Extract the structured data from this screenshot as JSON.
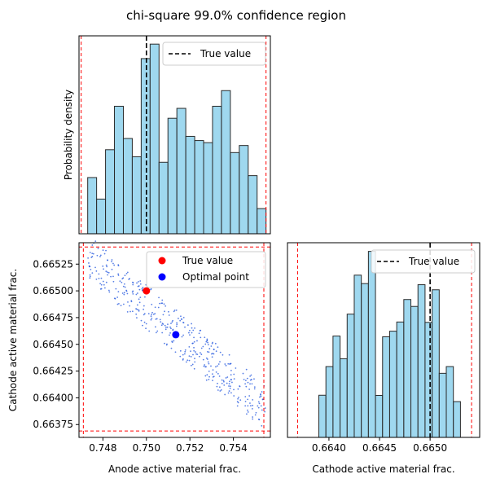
{
  "figure": {
    "title": "chi-square 99.0% confidence region"
  },
  "colors": {
    "hist_fill": "#87ceeb",
    "hist_edge": "#2b2b2b",
    "true_line": "#000000",
    "bound": "#ff0000",
    "cloud": "#2255dd",
    "true_point": "#ff0000",
    "optimal_point": "#0000ff"
  },
  "chart_data": [
    {
      "id": "anode-histogram",
      "type": "bar",
      "title": "",
      "xlabel": "",
      "ylabel": "Probability density",
      "xlim": [
        0.7469,
        0.7557
      ],
      "ylim": [
        0,
        1
      ],
      "show_xticks": false,
      "show_yticks": false,
      "bin_edges": [
        0.7473,
        0.74771,
        0.74812,
        0.74853,
        0.74894,
        0.74935,
        0.74976,
        0.75017,
        0.75058,
        0.75099,
        0.7514,
        0.75181,
        0.75222,
        0.75263,
        0.75304,
        0.75345,
        0.75386,
        0.75427,
        0.75468,
        0.75509,
        0.7555
      ],
      "values": [
        0.295,
        0.182,
        0.441,
        0.669,
        0.5,
        0.404,
        0.919,
        0.995,
        0.375,
        0.606,
        0.658,
        0.511,
        0.489,
        0.478,
        0.669,
        0.751,
        0.426,
        0.463,
        0.305,
        0.132
      ],
      "reference_line": {
        "label": "True value",
        "x": 0.75
      },
      "bounds": [
        0.747,
        0.7555
      ],
      "legend": {
        "position": "upper right",
        "entries": [
          "True value"
        ]
      },
      "grid": false
    },
    {
      "id": "joint-scatter",
      "type": "scatter",
      "title": "",
      "xlabel": "Anode active material frac.",
      "ylabel": "Cathode active material frac.",
      "xlim": [
        0.7469,
        0.7557
      ],
      "ylim": [
        0.66363,
        0.66545
      ],
      "xticks": [
        0.748,
        0.75,
        0.752,
        0.754
      ],
      "xtick_labels": [
        "0.748",
        "0.750",
        "0.752",
        "0.754"
      ],
      "yticks": [
        0.66375,
        0.664,
        0.66425,
        0.6645,
        0.66475,
        0.665,
        0.66525
      ],
      "ytick_labels": [
        "0.66375",
        "0.66400",
        "0.66425",
        "0.66450",
        "0.66475",
        "0.66500",
        "0.66525"
      ],
      "cloud": {
        "n_points": 420,
        "x_range": [
          0.7473,
          0.7555
        ],
        "y_range": [
          0.6639,
          0.66532
        ],
        "description_trend": "negative linear correlation between anode and cathode fractions"
      },
      "points": [
        {
          "label": "True value",
          "x": 0.75,
          "y": 0.665
        },
        {
          "label": "Optimal point",
          "x": 0.75135,
          "y": 0.66459
        }
      ],
      "bounds_x": [
        0.7471,
        0.7554
      ],
      "bounds_y": [
        0.66369,
        0.66541
      ],
      "legend": {
        "position": "upper right",
        "entries": [
          "True value",
          "Optimal point"
        ]
      },
      "grid": false
    },
    {
      "id": "cathode-histogram",
      "type": "bar",
      "title": "",
      "xlabel": "Cathode active material frac.",
      "ylabel": "",
      "xlim": [
        0.66359,
        0.66549
      ],
      "ylim": [
        0,
        1
      ],
      "xticks": [
        0.664,
        0.6645,
        0.665
      ],
      "xtick_labels": [
        "0.6640",
        "0.6645",
        "0.6650"
      ],
      "show_yticks": false,
      "bin_edges": [
        0.6639,
        0.66397,
        0.66404,
        0.66411,
        0.66418,
        0.66425,
        0.66432,
        0.66439,
        0.66446,
        0.66453,
        0.6646,
        0.66467,
        0.66474,
        0.66481,
        0.66488,
        0.66495,
        0.66502,
        0.66509,
        0.66516,
        0.66523,
        0.6653
      ],
      "values": [
        0.225,
        0.378,
        0.541,
        0.42,
        0.658,
        0.866,
        0.821,
        0.993,
        0.224,
        0.537,
        0.567,
        0.616,
        0.736,
        0.699,
        0.815,
        0.614,
        0.788,
        0.342,
        0.378,
        0.191
      ],
      "reference_line": {
        "label": "True value",
        "x": 0.665
      },
      "bounds": [
        0.66369,
        0.66541
      ],
      "legend": {
        "position": "upper right",
        "entries": [
          "True value"
        ]
      },
      "grid": false
    }
  ]
}
